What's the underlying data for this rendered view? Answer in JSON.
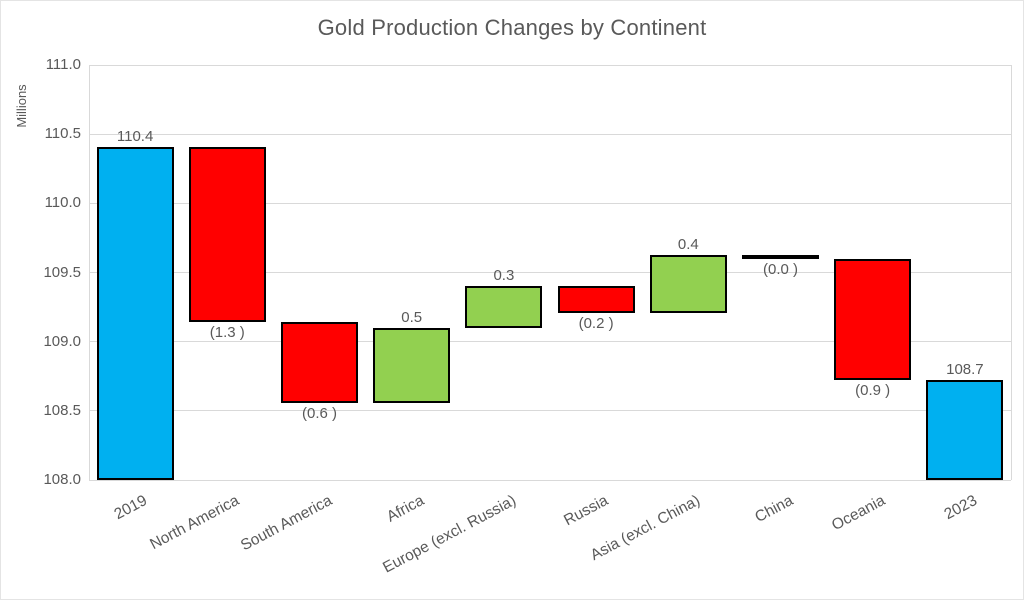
{
  "chart_data": {
    "type": "waterfall",
    "title": "Gold Production Changes by Continent",
    "xlabel": "",
    "ylabel": "Millions",
    "ylim": [
      108.0,
      111.0
    ],
    "ytick_labels": [
      "111.0",
      "110.5",
      "110.0",
      "109.5",
      "109.0",
      "108.5",
      "108.0"
    ],
    "grid": true,
    "legend": "none",
    "categories": [
      "2019",
      "North America",
      "South America",
      "Africa",
      "Europe (excl. Russia)",
      "Russia",
      "Asia (excl. China)",
      "China",
      "Oceania",
      "2023"
    ],
    "bars": [
      {
        "category": "2019",
        "kind": "total",
        "delta": null,
        "start": 108.0,
        "end": 110.41,
        "label": "110.4",
        "label_position": "above"
      },
      {
        "category": "North America",
        "kind": "decrease",
        "delta": -1.3,
        "start": 110.41,
        "end": 109.14,
        "label": "(1.3 )",
        "label_position": "below"
      },
      {
        "category": "South America",
        "kind": "decrease",
        "delta": -0.6,
        "start": 109.14,
        "end": 108.56,
        "label": "(0.6 )",
        "label_position": "below"
      },
      {
        "category": "Africa",
        "kind": "increase",
        "delta": 0.5,
        "start": 108.56,
        "end": 109.1,
        "label": "0.5",
        "label_position": "above"
      },
      {
        "category": "Europe (excl. Russia)",
        "kind": "increase",
        "delta": 0.3,
        "start": 109.1,
        "end": 109.4,
        "label": "0.3",
        "label_position": "above"
      },
      {
        "category": "Russia",
        "kind": "decrease",
        "delta": -0.2,
        "start": 109.4,
        "end": 109.21,
        "label": "(0.2 )",
        "label_position": "below"
      },
      {
        "category": "Asia (excl. China)",
        "kind": "increase",
        "delta": 0.4,
        "start": 109.21,
        "end": 109.63,
        "label": "0.4",
        "label_position": "above"
      },
      {
        "category": "China",
        "kind": "decrease",
        "delta": 0.0,
        "start": 109.63,
        "end": 109.6,
        "label": "(0.0 )",
        "label_position": "below"
      },
      {
        "category": "Oceania",
        "kind": "decrease",
        "delta": -0.9,
        "start": 109.6,
        "end": 108.72,
        "label": "(0.9 )",
        "label_position": "below"
      },
      {
        "category": "2023",
        "kind": "total",
        "delta": null,
        "start": 108.0,
        "end": 108.72,
        "label": "108.7",
        "label_position": "above"
      }
    ],
    "colors": {
      "total": "#00B0F0",
      "increase": "#92D050",
      "decrease": "#FF0000",
      "bar_border": "#000000",
      "gridline": "#D9D9D9",
      "text": "#595959"
    }
  }
}
